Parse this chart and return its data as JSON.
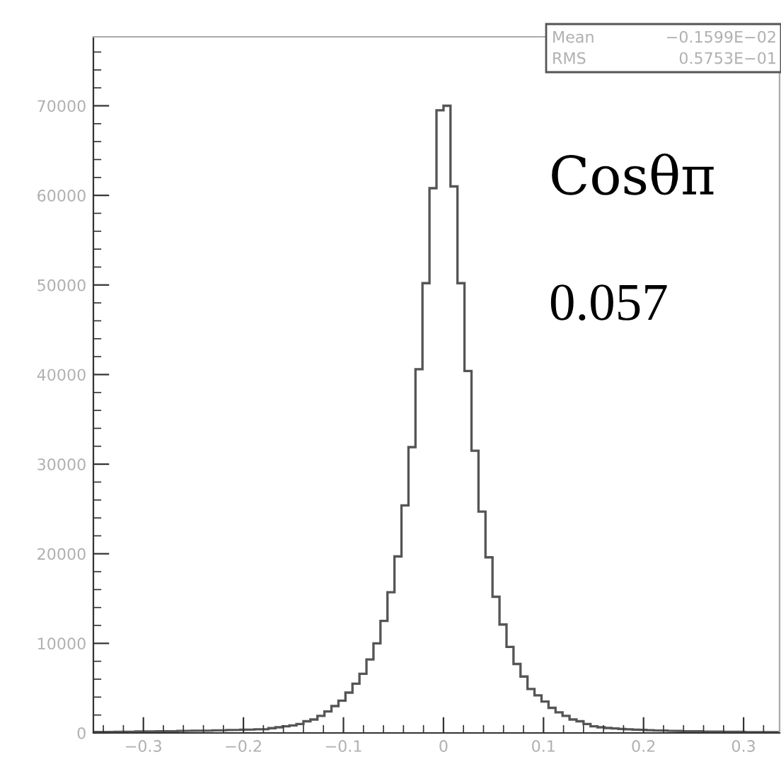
{
  "chart_data": {
    "type": "histogram",
    "bins": [
      -0.35,
      -0.343,
      -0.336,
      -0.329,
      -0.322,
      -0.315,
      -0.308,
      -0.301,
      -0.294,
      -0.287,
      -0.28,
      -0.273,
      -0.266,
      -0.259,
      -0.252,
      -0.245,
      -0.238,
      -0.231,
      -0.224,
      -0.217,
      -0.21,
      -0.203,
      -0.196,
      -0.189,
      -0.182,
      -0.175,
      -0.168,
      -0.161,
      -0.154,
      -0.147,
      -0.14,
      -0.133,
      -0.126,
      -0.119,
      -0.112,
      -0.105,
      -0.098,
      -0.091,
      -0.084,
      -0.077,
      -0.07,
      -0.063,
      -0.056,
      -0.049,
      -0.042,
      -0.035,
      -0.028,
      -0.021,
      -0.014,
      -0.007,
      0,
      0.007,
      0.014,
      0.021,
      0.028,
      0.035,
      0.042,
      0.049,
      0.056,
      0.063,
      0.07,
      0.077,
      0.084,
      0.091,
      0.098,
      0.105,
      0.112,
      0.119,
      0.126,
      0.133,
      0.14,
      0.147,
      0.154,
      0.161,
      0.168,
      0.175,
      0.182,
      0.189,
      0.196,
      0.203,
      0.21,
      0.217,
      0.224,
      0.231,
      0.238,
      0.245,
      0.252,
      0.259,
      0.266,
      0.273,
      0.28,
      0.287,
      0.294,
      0.301,
      0.308,
      0.315,
      0.322,
      0.329,
      0.336
    ],
    "values": [
      100,
      110,
      120,
      130,
      140,
      150,
      160,
      170,
      180,
      190,
      200,
      210,
      220,
      240,
      250,
      260,
      270,
      280,
      300,
      320,
      340,
      360,
      380,
      400,
      420,
      530,
      630,
      740,
      840,
      1000,
      1300,
      1500,
      1900,
      2400,
      3000,
      3600,
      4500,
      5500,
      6600,
      8200,
      10000,
      12500,
      15700,
      19700,
      25400,
      31900,
      40600,
      50200,
      60800,
      69500,
      70000,
      61000,
      50200,
      40400,
      31500,
      24700,
      19600,
      15200,
      12100,
      9600,
      7700,
      6300,
      4900,
      4200,
      3500,
      2800,
      2300,
      1900,
      1500,
      1300,
      1000,
      740,
      630,
      550,
      500,
      450,
      400,
      370,
      340,
      310,
      280,
      260,
      240,
      220,
      200,
      190,
      180,
      170,
      160,
      150,
      140,
      130,
      120,
      110,
      100,
      100,
      90,
      90
    ],
    "color": "#555555",
    "xlim": [
      -0.35,
      0.336
    ],
    "ylim": [
      0,
      77700
    ],
    "xticks": [
      {
        "value": -0.3,
        "label": "−0.3"
      },
      {
        "value": -0.2,
        "label": "−0.2"
      },
      {
        "value": -0.1,
        "label": "−0.1"
      },
      0,
      0.1,
      0.2,
      0.3
    ],
    "yticks": [
      0,
      10000,
      20000,
      30000,
      40000,
      50000,
      60000,
      70000
    ],
    "grid": false,
    "legend": false,
    "annotations": [
      "Mean",
      "−0.1599E−02",
      "RMS",
      "0.5753E−01",
      "Cosθπ",
      "0.057"
    ]
  }
}
